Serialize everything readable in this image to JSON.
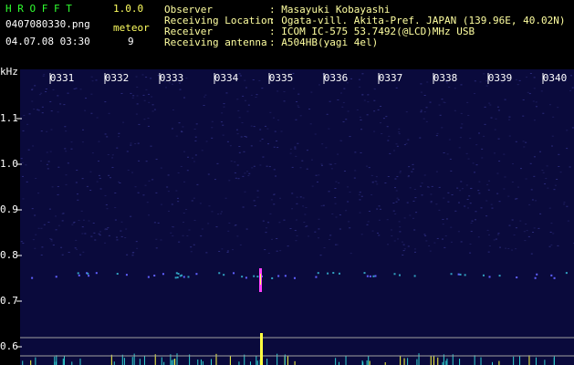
{
  "header": {
    "app_name": "H R O F F T",
    "version": "1.0.0",
    "file_name": "0407080330.png",
    "timestamp": "04.07.08 03:30",
    "meteor_label": "meteor",
    "meteor_count": "9"
  },
  "station": {
    "rows": [
      {
        "label": "Observer",
        "value": ": Masayuki Kobayashi"
      },
      {
        "label": "Receiving Location",
        "value": ": Ogata-vill. Akita-Pref. JAPAN (139.96E, 40.02N)"
      },
      {
        "label": "Receiver",
        "value": ": ICOM IC-575 53.7492(@LCD)MHz USB"
      },
      {
        "label": "Receiving antenna",
        "value": ": A504HB(yagi 4el)"
      }
    ]
  },
  "spectrogram": {
    "freq_unit": "kHz",
    "freq_labels": [
      "1.1",
      "1.0",
      "0.9",
      "0.8",
      "0.7",
      "0.6"
    ],
    "time_labels": [
      "0331",
      "0332",
      "0333",
      "0334",
      "0335",
      "0336",
      "0337",
      "0338",
      "0339",
      "0340"
    ]
  }
}
